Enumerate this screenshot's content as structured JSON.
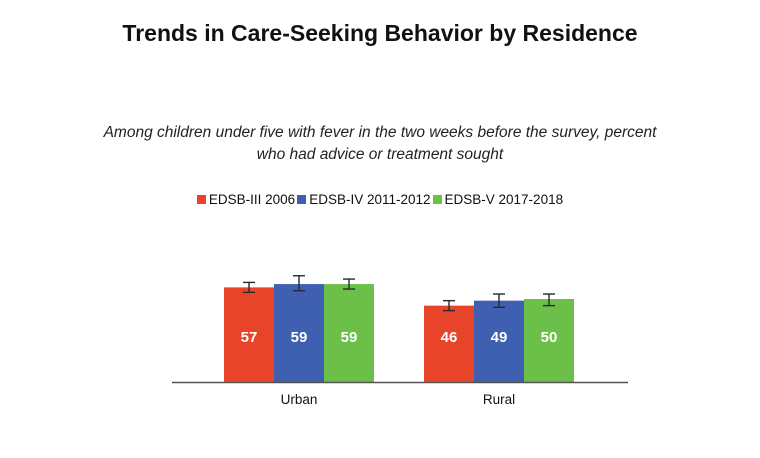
{
  "chart_data": {
    "type": "bar",
    "title": "Trends in Care-Seeking Behavior by Residence",
    "subtitle": "Among children under five with fever in the two weeks before the survey, percent who had advice or treatment sought",
    "categories": [
      "Urban",
      "Rural"
    ],
    "series": [
      {
        "name": "EDSB-III 2006",
        "color": "#e8442a",
        "values": [
          57,
          46
        ],
        "ci": [
          [
            54,
            60
          ],
          [
            43,
            49
          ]
        ]
      },
      {
        "name": "EDSB-IV 2011-2012",
        "color": "#3f5fb0",
        "values": [
          59,
          49
        ],
        "ci": [
          [
            55,
            64
          ],
          [
            45,
            53
          ]
        ]
      },
      {
        "name": "EDSB-V 2017-2018",
        "color": "#6cc04a",
        "values": [
          59,
          50
        ],
        "ci": [
          [
            56,
            62
          ],
          [
            46,
            53
          ]
        ]
      }
    ],
    "ylim": [
      0,
      60
    ],
    "xlabel": "",
    "ylabel": "",
    "grid": false,
    "legend_position": "top-center",
    "error_bars": true
  }
}
